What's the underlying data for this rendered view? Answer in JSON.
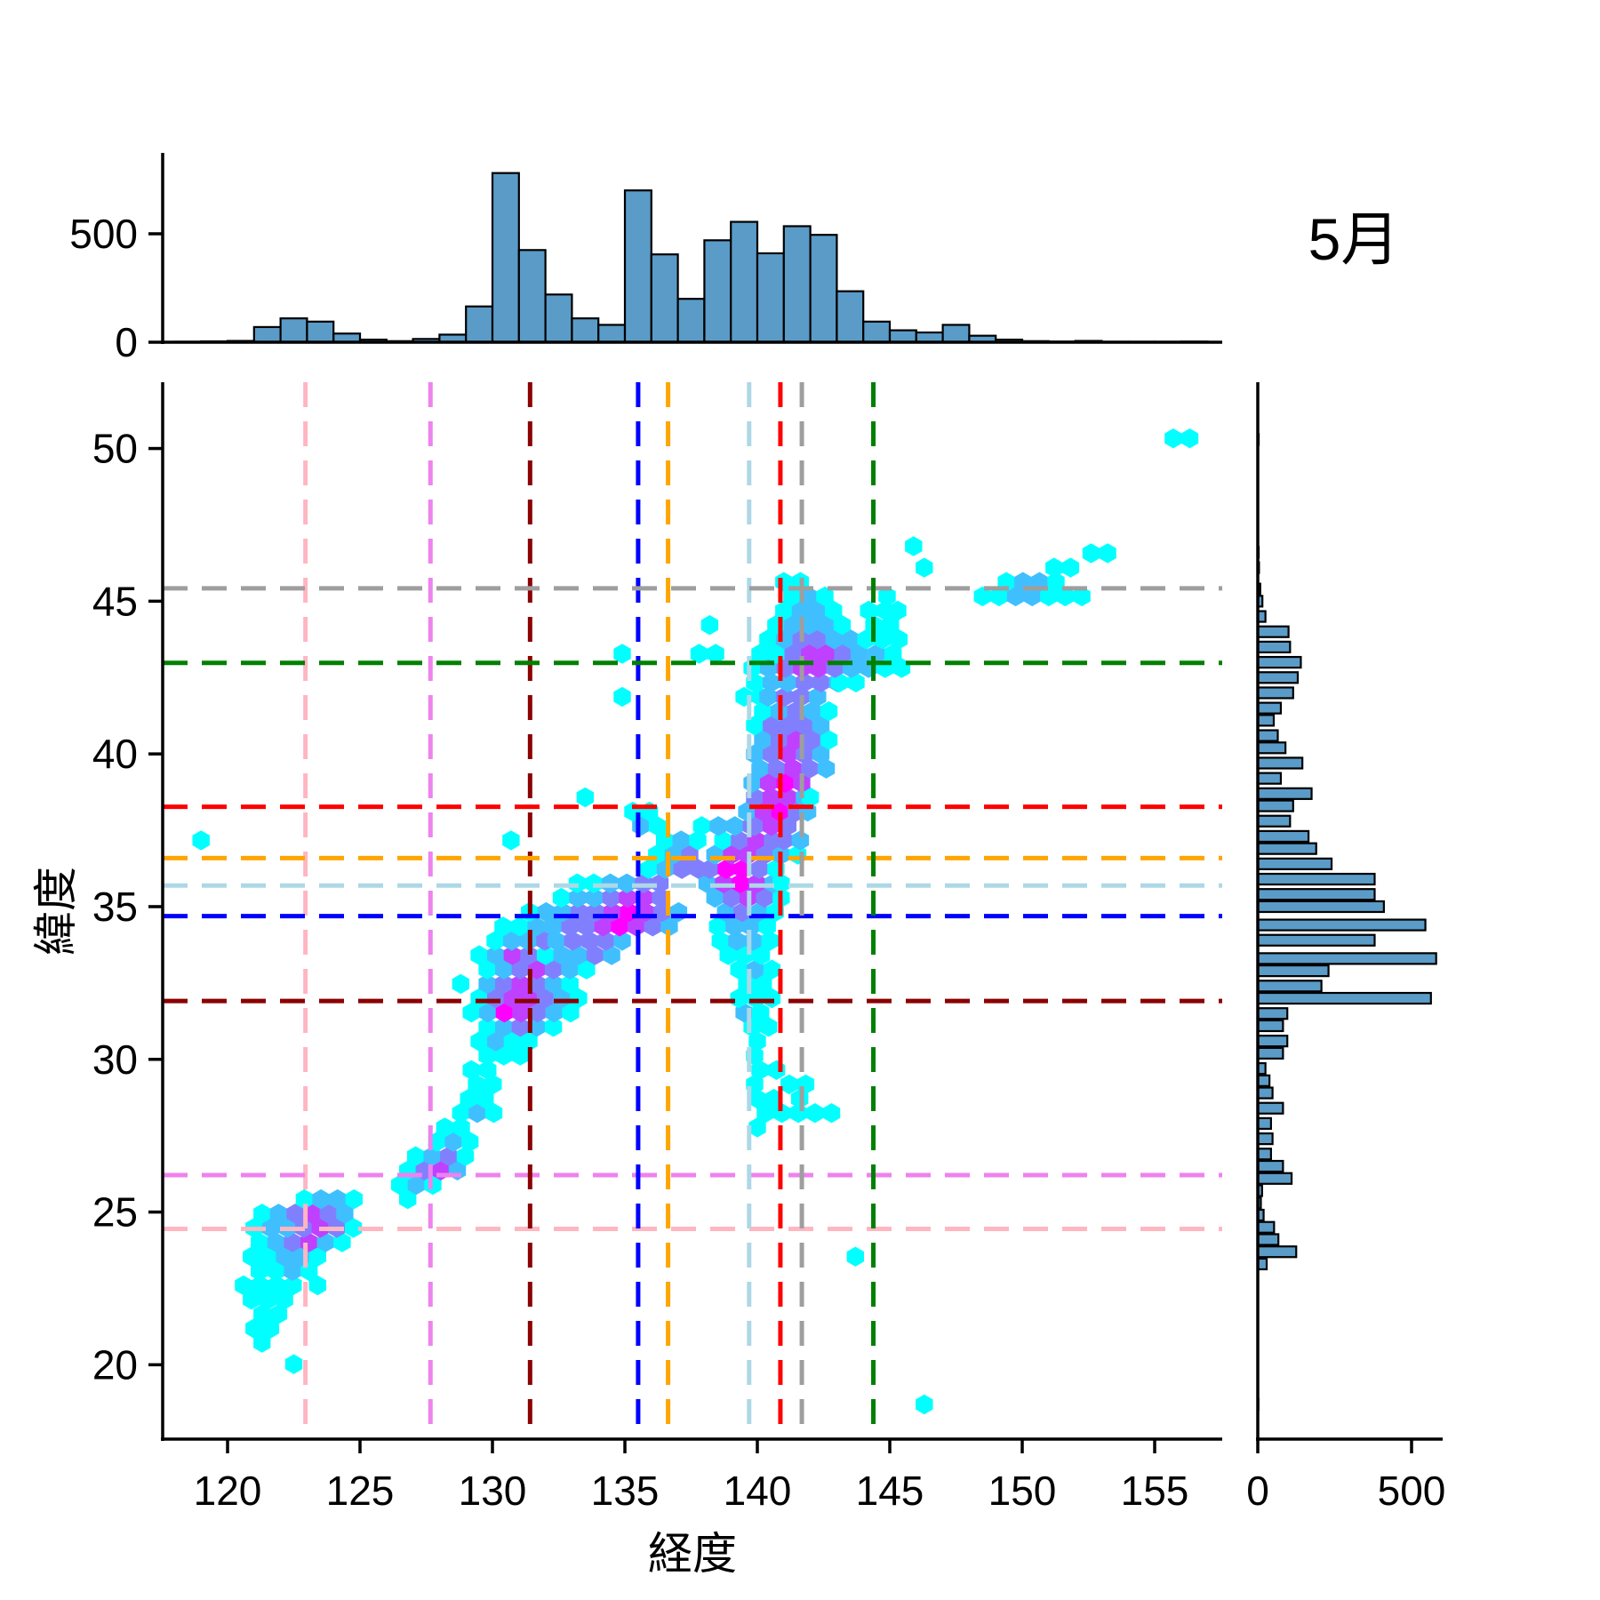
{
  "chart_data": {
    "type": "hexbin",
    "title": "5月",
    "xlabel": "経度",
    "ylabel": "緯度",
    "x_ticks": [
      120,
      125,
      130,
      135,
      140,
      145,
      150,
      155
    ],
    "y_ticks": [
      20,
      25,
      30,
      35,
      40,
      45,
      50
    ],
    "xlim": [
      117.55,
      157.55
    ],
    "ylim": [
      17.57,
      52.17
    ],
    "marginal_ticks": [
      0,
      500
    ],
    "hist_fill": "#5b9bc7",
    "hist_edge": "#000000",
    "hex_tier_colors": [
      "#00ffff",
      "#40bfff",
      "#8080ff",
      "#bf40ff",
      "#ff00ff"
    ],
    "crosshairs": [
      {
        "color_name": "pink",
        "color": "#ffb6c1",
        "lon": 122.94,
        "lat": 24.45
      },
      {
        "color_name": "violet",
        "color": "#ee82ee",
        "lon": 127.66,
        "lat": 26.21
      },
      {
        "color_name": "darkred",
        "color": "#8b0000",
        "lon": 131.42,
        "lat": 31.91
      },
      {
        "color_name": "blue",
        "color": "#0000ff",
        "lon": 135.5,
        "lat": 34.69
      },
      {
        "color_name": "orange",
        "color": "#ffa500",
        "lon": 136.63,
        "lat": 36.59
      },
      {
        "color_name": "lightblue",
        "color": "#add8e6",
        "lon": 139.69,
        "lat": 35.69
      },
      {
        "color_name": "red",
        "color": "#ff0000",
        "lon": 140.87,
        "lat": 38.27
      },
      {
        "color_name": "gray",
        "color": "#9e9e9e",
        "lon": 141.68,
        "lat": 45.42
      },
      {
        "color_name": "green",
        "color": "#008000",
        "lon": 144.38,
        "lat": 42.98
      }
    ],
    "top_hist": {
      "bin_start": 118,
      "bin_width": 1,
      "values": [
        2,
        4,
        6,
        70,
        110,
        95,
        40,
        12,
        5,
        15,
        35,
        165,
        780,
        425,
        220,
        110,
        80,
        700,
        405,
        200,
        470,
        555,
        410,
        535,
        495,
        235,
        95,
        55,
        45,
        80,
        30,
        12,
        5,
        3,
        6,
        2,
        2,
        2,
        3
      ]
    },
    "right_hist": {
      "bar_height_deg": 0.35,
      "bars": [
        [
          50.3,
          3
        ],
        [
          46.6,
          3
        ],
        [
          46.1,
          4
        ],
        [
          45.4,
          8
        ],
        [
          45.0,
          15
        ],
        [
          44.5,
          25
        ],
        [
          44.0,
          100
        ],
        [
          43.5,
          105
        ],
        [
          43.0,
          140
        ],
        [
          42.5,
          130
        ],
        [
          42.0,
          115
        ],
        [
          41.5,
          75
        ],
        [
          41.1,
          52
        ],
        [
          40.6,
          65
        ],
        [
          40.2,
          90
        ],
        [
          39.7,
          145
        ],
        [
          39.2,
          75
        ],
        [
          38.7,
          175
        ],
        [
          38.3,
          115
        ],
        [
          37.8,
          105
        ],
        [
          37.3,
          165
        ],
        [
          36.9,
          190
        ],
        [
          36.4,
          240
        ],
        [
          35.9,
          380
        ],
        [
          35.4,
          380
        ],
        [
          35.0,
          410
        ],
        [
          34.4,
          545
        ],
        [
          33.9,
          380
        ],
        [
          33.3,
          580
        ],
        [
          32.9,
          230
        ],
        [
          32.4,
          207
        ],
        [
          32.0,
          563
        ],
        [
          31.5,
          96
        ],
        [
          31.1,
          82
        ],
        [
          30.6,
          96
        ],
        [
          30.2,
          82
        ],
        [
          29.7,
          25
        ],
        [
          29.3,
          38
        ],
        [
          28.9,
          48
        ],
        [
          28.4,
          82
        ],
        [
          27.9,
          43
        ],
        [
          27.4,
          48
        ],
        [
          26.9,
          43
        ],
        [
          26.5,
          82
        ],
        [
          26.1,
          110
        ],
        [
          25.7,
          14
        ],
        [
          25.3,
          10
        ],
        [
          24.9,
          19
        ],
        [
          24.5,
          53
        ],
        [
          24.1,
          67
        ],
        [
          23.7,
          125
        ],
        [
          23.3,
          29
        ],
        [
          18.7,
          2
        ]
      ]
    },
    "hexbin": {
      "cell_w_deg": 0.625,
      "row_h_deg": 0.47,
      "tier_meaning": "density tier 0=low(cyan) .. 4=high(magenta)",
      "rows": [
        {
          "lat": 18.7,
          "runs": [
            [
              146.3,
              "0"
            ]
          ]
        },
        {
          "lat": 20.02,
          "runs": [
            [
              122.5,
              "0"
            ]
          ]
        },
        {
          "lat": 20.72,
          "runs": [
            [
              121.3,
              "0"
            ]
          ]
        },
        {
          "lat": 21.19,
          "runs": [
            [
              121.0,
              "00"
            ]
          ]
        },
        {
          "lat": 21.66,
          "runs": [
            [
              121.3,
              "00"
            ]
          ]
        },
        {
          "lat": 22.13,
          "runs": [
            [
              120.9,
              "000"
            ]
          ]
        },
        {
          "lat": 22.6,
          "runs": [
            [
              120.6,
              "0000"
            ],
            [
              123.4,
              "0"
            ]
          ]
        },
        {
          "lat": 23.07,
          "runs": [
            [
              121.2,
              "0010"
            ]
          ]
        },
        {
          "lat": 23.54,
          "runs": [
            [
              120.9,
              "00110"
            ],
            [
              143.7,
              "0"
            ]
          ]
        },
        {
          "lat": 24.01,
          "runs": [
            [
              121.2,
              "012310"
            ]
          ]
        },
        {
          "lat": 24.48,
          "runs": [
            [
              121.0,
              "0112320"
            ]
          ]
        },
        {
          "lat": 24.95,
          "runs": [
            [
              121.3,
              "012321"
            ]
          ]
        },
        {
          "lat": 25.42,
          "runs": [
            [
              122.9,
              "0110"
            ],
            [
              126.8,
              "0"
            ]
          ]
        },
        {
          "lat": 25.89,
          "runs": [
            [
              126.5,
              "010"
            ]
          ]
        },
        {
          "lat": 26.36,
          "runs": [
            [
              126.8,
              "0231"
            ]
          ]
        },
        {
          "lat": 26.83,
          "runs": [
            [
              127.1,
              "0120"
            ]
          ]
        },
        {
          "lat": 27.3,
          "runs": [
            [
              127.9,
              "010"
            ]
          ]
        },
        {
          "lat": 27.77,
          "runs": [
            [
              128.2,
              "00"
            ],
            [
              140.0,
              "0"
            ]
          ]
        },
        {
          "lat": 28.24,
          "runs": [
            [
              128.8,
              "010"
            ],
            [
              140.3,
              "00000"
            ]
          ]
        },
        {
          "lat": 28.71,
          "runs": [
            [
              129.1,
              "00"
            ],
            [
              140.0,
              "00"
            ],
            [
              141.6,
              "0"
            ]
          ]
        },
        {
          "lat": 29.18,
          "runs": [
            [
              129.4,
              "00"
            ],
            [
              139.9,
              "0"
            ],
            [
              141.2,
              "00"
            ]
          ]
        },
        {
          "lat": 29.65,
          "runs": [
            [
              129.2,
              "00"
            ],
            [
              140.1,
              "00"
            ]
          ]
        },
        {
          "lat": 30.12,
          "runs": [
            [
              129.8,
              "000"
            ],
            [
              139.9,
              "0"
            ]
          ]
        },
        {
          "lat": 30.59,
          "runs": [
            [
              129.5,
              "0100"
            ],
            [
              140.0,
              "0"
            ]
          ]
        },
        {
          "lat": 31.06,
          "runs": [
            [
              129.8,
              "01210"
            ],
            [
              139.8,
              "00"
            ]
          ]
        },
        {
          "lat": 31.53,
          "runs": [
            [
              129.2,
              "0143210"
            ],
            [
              139.5,
              "10"
            ]
          ]
        },
        {
          "lat": 32.0,
          "runs": [
            [
              129.5,
              "0233210"
            ],
            [
              139.3,
              "000"
            ]
          ]
        },
        {
          "lat": 32.47,
          "runs": [
            [
              128.8,
              "0"
            ],
            [
              129.8,
              "123210"
            ],
            [
              139.6,
              "00"
            ]
          ]
        },
        {
          "lat": 32.94,
          "runs": [
            [
              129.8,
              "0123210"
            ],
            [
              139.3,
              "010"
            ]
          ]
        },
        {
          "lat": 33.41,
          "runs": [
            [
              129.5,
              "01321"
            ],
            [
              132.0,
              "01121"
            ],
            [
              138.9,
              "000"
            ]
          ]
        },
        {
          "lat": 33.88,
          "runs": [
            [
              130.1,
              "0112"
            ],
            [
              132.4,
              "12221"
            ],
            [
              138.6,
              "0110"
            ]
          ]
        },
        {
          "lat": 34.35,
          "runs": [
            [
              130.4,
              "0011"
            ],
            [
              132.3,
              "12234321"
            ],
            [
              138.5,
              "0110"
            ]
          ]
        },
        {
          "lat": 34.82,
          "runs": [
            [
              131.4,
              "0112234321"
            ],
            [
              138.8,
              "1210"
            ]
          ]
        },
        {
          "lat": 35.29,
          "runs": [
            [
              132.6,
              "0112332"
            ],
            [
              138.4,
              "12320"
            ]
          ]
        },
        {
          "lat": 35.76,
          "runs": [
            [
              133.2,
              "001122"
            ],
            [
              138.1,
              "13431"
            ],
            [
              140.9,
              "0"
            ]
          ]
        },
        {
          "lat": 36.23,
          "runs": [
            [
              135.9,
              "0122"
            ],
            [
              138.2,
              "24420"
            ]
          ]
        },
        {
          "lat": 36.7,
          "runs": [
            [
              136.2,
              "012"
            ],
            [
              138.4,
              "13321"
            ],
            [
              140.9,
              "10"
            ]
          ]
        },
        {
          "lat": 37.17,
          "runs": [
            [
              119.0,
              "0"
            ],
            [
              130.7,
              "0"
            ],
            [
              136.5,
              "010"
            ],
            [
              138.7,
              "0232"
            ],
            [
              141.0,
              "21"
            ]
          ]
        },
        {
          "lat": 37.64,
          "runs": [
            [
              135.6,
              "10"
            ],
            [
              137.9,
              "0112"
            ],
            [
              139.9,
              "232"
            ]
          ]
        },
        {
          "lat": 38.11,
          "runs": [
            [
              135.3,
              "00"
            ],
            [
              139.6,
              "1342"
            ],
            [
              141.9,
              "1"
            ]
          ]
        },
        {
          "lat": 38.58,
          "runs": [
            [
              133.5,
              "0"
            ],
            [
              139.9,
              "2331"
            ],
            [
              142.0,
              "0"
            ]
          ]
        },
        {
          "lat": 39.05,
          "runs": [
            [
              139.8,
              "1343"
            ]
          ]
        },
        {
          "lat": 39.52,
          "runs": [
            [
              140.1,
              "12321"
            ]
          ]
        },
        {
          "lat": 39.99,
          "runs": [
            [
              139.9,
              "12321"
            ]
          ]
        },
        {
          "lat": 40.46,
          "runs": [
            [
              140.2,
              "12320"
            ]
          ]
        },
        {
          "lat": 40.93,
          "runs": [
            [
              139.9,
              "02221"
            ]
          ]
        },
        {
          "lat": 41.4,
          "runs": [
            [
              140.2,
              "01210"
            ]
          ]
        },
        {
          "lat": 41.87,
          "runs": [
            [
              134.9,
              "0"
            ],
            [
              139.5,
              "00"
            ],
            [
              140.4,
              "1221"
            ]
          ]
        },
        {
          "lat": 42.34,
          "runs": [
            [
              139.9,
              "011221"
            ],
            [
              143.1,
              "00"
            ]
          ]
        },
        {
          "lat": 42.81,
          "runs": [
            [
              139.8,
              "0123321"
            ],
            [
              144.2,
              "100"
            ]
          ]
        },
        {
          "lat": 43.28,
          "runs": [
            [
              134.9,
              "0"
            ],
            [
              137.8,
              "00"
            ],
            [
              140.1,
              "0023321"
            ],
            [
              144.5,
              "10"
            ]
          ]
        },
        {
          "lat": 43.75,
          "runs": [
            [
              140.4,
              "012211"
            ],
            [
              144.1,
              "000"
            ]
          ]
        },
        {
          "lat": 44.22,
          "runs": [
            [
              138.2,
              "0"
            ],
            [
              140.7,
              "01110"
            ],
            [
              144.4,
              "00"
            ]
          ]
        },
        {
          "lat": 44.69,
          "runs": [
            [
              141.0,
              "0110"
            ],
            [
              144.2,
              "00"
            ],
            [
              145.3,
              "0"
            ]
          ]
        },
        {
          "lat": 45.16,
          "runs": [
            [
              141.3,
              "010"
            ],
            [
              144.9,
              "0"
            ],
            [
              148.5,
              "0011000"
            ]
          ]
        },
        {
          "lat": 45.63,
          "runs": [
            [
              141.0,
              "00"
            ],
            [
              149.4,
              "0110"
            ]
          ]
        },
        {
          "lat": 46.1,
          "runs": [
            [
              146.3,
              "0"
            ],
            [
              151.2,
              "00"
            ]
          ]
        },
        {
          "lat": 46.57,
          "runs": [
            [
              152.6,
              "00"
            ]
          ]
        },
        {
          "lat": 46.8,
          "runs": [
            [
              145.9,
              "0"
            ]
          ]
        },
        {
          "lat": 50.33,
          "runs": [
            [
              155.7,
              "00"
            ]
          ]
        }
      ]
    }
  }
}
